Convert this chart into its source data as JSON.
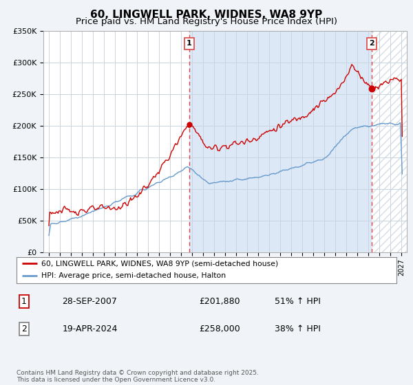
{
  "title": "60, LINGWELL PARK, WIDNES, WA8 9YP",
  "subtitle": "Price paid vs. HM Land Registry's House Price Index (HPI)",
  "ylim": [
    0,
    350000
  ],
  "yticks": [
    0,
    50000,
    100000,
    150000,
    200000,
    250000,
    300000,
    350000
  ],
  "ytick_labels": [
    "£0",
    "£50K",
    "£100K",
    "£150K",
    "£200K",
    "£250K",
    "£300K",
    "£350K"
  ],
  "background_color": "#f0f4f8",
  "plot_background": "#ffffff",
  "shaded_background": "#dce8f5",
  "grid_color": "#c8d4e0",
  "red_color": "#cc0000",
  "blue_color": "#6699cc",
  "marker1_label": "1",
  "marker2_label": "2",
  "marker1_price": 201880,
  "marker2_price": 258000,
  "legend_line1": "60, LINGWELL PARK, WIDNES, WA8 9YP (semi-detached house)",
  "legend_line2": "HPI: Average price, semi-detached house, Halton",
  "table_row1": [
    "1",
    "28-SEP-2007",
    "£201,880",
    "51% ↑ HPI"
  ],
  "table_row2": [
    "2",
    "19-APR-2024",
    "£258,000",
    "38% ↑ HPI"
  ],
  "footnote": "Contains HM Land Registry data © Crown copyright and database right 2025.\nThis data is licensed under the Open Government Licence v3.0.",
  "vline_color": "#dd4444",
  "yr1": 2007.75,
  "yr2": 2024.33
}
